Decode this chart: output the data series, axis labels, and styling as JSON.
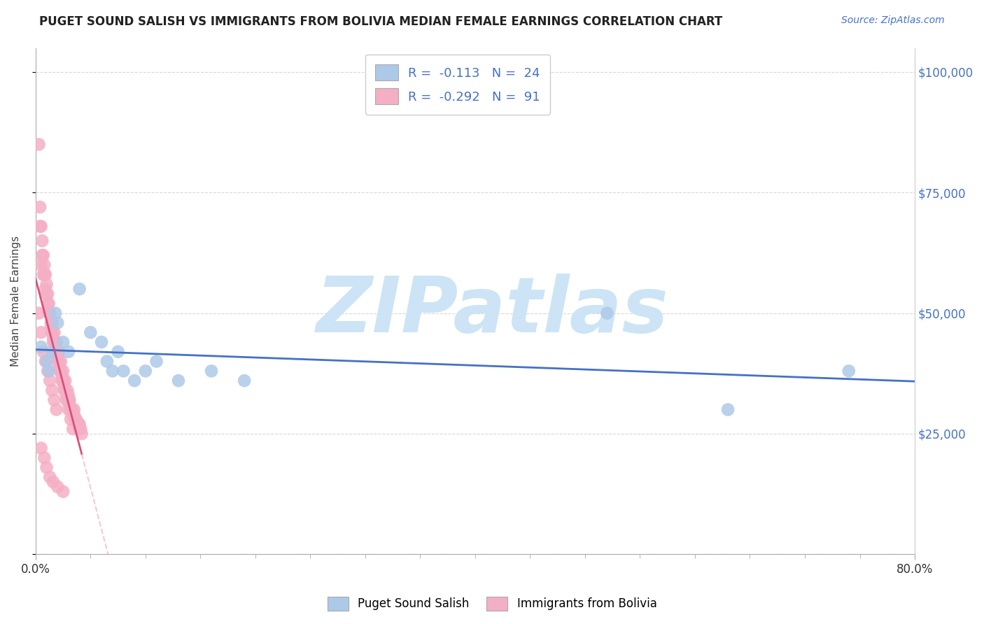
{
  "title": "PUGET SOUND SALISH VS IMMIGRANTS FROM BOLIVIA MEDIAN FEMALE EARNINGS CORRELATION CHART",
  "source": "Source: ZipAtlas.com",
  "ylabel": "Median Female Earnings",
  "xlim": [
    0.0,
    0.8
  ],
  "ylim": [
    0,
    105000
  ],
  "yticks": [
    0,
    25000,
    50000,
    75000,
    100000
  ],
  "right_ytick_labels": [
    "",
    "$25,000",
    "$50,000",
    "$75,000",
    "$100,000"
  ],
  "xtick_positions": [
    0.0,
    0.8
  ],
  "xtick_labels": [
    "0.0%",
    "80.0%"
  ],
  "series1_name": "Puget Sound Salish",
  "series1_color": "#adc9e8",
  "series1_R": -0.113,
  "series1_N": 24,
  "series1_line_color": "#4472c4",
  "series2_name": "Immigrants from Bolivia",
  "series2_color": "#f5afc4",
  "series2_R": -0.292,
  "series2_N": 91,
  "series2_line_color": "#d94f7e",
  "title_color": "#222222",
  "source_color": "#4472c4",
  "watermark": "ZIPatlas",
  "watermark_color": "#cce4f5",
  "background_color": "#ffffff",
  "grid_color": "#d8d8d8",
  "blue_scatter_x": [
    0.005,
    0.01,
    0.012,
    0.015,
    0.018,
    0.02,
    0.025,
    0.03,
    0.04,
    0.05,
    0.06,
    0.065,
    0.07,
    0.075,
    0.08,
    0.09,
    0.1,
    0.11,
    0.13,
    0.16,
    0.19,
    0.52,
    0.63,
    0.74
  ],
  "blue_scatter_y": [
    43000,
    40000,
    38000,
    42000,
    50000,
    48000,
    44000,
    42000,
    55000,
    46000,
    44000,
    40000,
    38000,
    42000,
    38000,
    36000,
    38000,
    40000,
    36000,
    38000,
    36000,
    50000,
    30000,
    38000
  ],
  "pink_scatter_x": [
    0.003,
    0.004,
    0.005,
    0.006,
    0.007,
    0.008,
    0.009,
    0.01,
    0.011,
    0.012,
    0.013,
    0.014,
    0.015,
    0.016,
    0.017,
    0.018,
    0.019,
    0.02,
    0.021,
    0.022,
    0.023,
    0.024,
    0.025,
    0.026,
    0.027,
    0.028,
    0.029,
    0.03,
    0.031,
    0.032,
    0.033,
    0.034,
    0.035,
    0.036,
    0.037,
    0.038,
    0.039,
    0.04,
    0.041,
    0.042,
    0.005,
    0.007,
    0.009,
    0.011,
    0.013,
    0.015,
    0.017,
    0.019,
    0.021,
    0.023,
    0.025,
    0.027,
    0.029,
    0.031,
    0.033,
    0.004,
    0.006,
    0.008,
    0.01,
    0.012,
    0.014,
    0.016,
    0.018,
    0.02,
    0.022,
    0.024,
    0.026,
    0.028,
    0.03,
    0.032,
    0.034,
    0.003,
    0.005,
    0.007,
    0.009,
    0.011,
    0.013,
    0.015,
    0.017,
    0.019,
    0.025,
    0.03,
    0.035,
    0.04,
    0.005,
    0.008,
    0.01,
    0.013,
    0.016,
    0.02,
    0.025
  ],
  "pink_scatter_y": [
    85000,
    72000,
    68000,
    65000,
    62000,
    60000,
    58000,
    56000,
    54000,
    52000,
    50000,
    48000,
    46000,
    45000,
    44000,
    43000,
    42000,
    41000,
    40000,
    39000,
    38000,
    37000,
    36000,
    35000,
    34000,
    33000,
    32000,
    32000,
    31000,
    30000,
    30000,
    29000,
    29000,
    28000,
    28000,
    27000,
    27000,
    26000,
    26000,
    25000,
    60000,
    58000,
    55000,
    52000,
    50000,
    48000,
    46000,
    44000,
    42000,
    40000,
    38000,
    36000,
    34000,
    32000,
    30000,
    68000,
    62000,
    58000,
    54000,
    50000,
    47000,
    44000,
    42000,
    40000,
    38000,
    36000,
    34000,
    32000,
    30000,
    28000,
    26000,
    50000,
    46000,
    42000,
    40000,
    38000,
    36000,
    34000,
    32000,
    30000,
    36000,
    33000,
    30000,
    27000,
    22000,
    20000,
    18000,
    16000,
    15000,
    14000,
    13000
  ]
}
